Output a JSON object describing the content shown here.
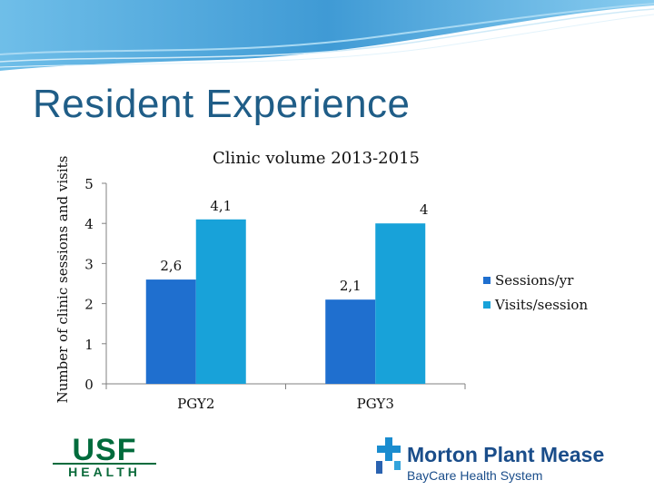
{
  "slide": {
    "title": "Resident Experience"
  },
  "chart_data": {
    "type": "bar",
    "title": "Clinic volume 2013-2015",
    "xlabel": "",
    "ylabel": "Number of clinic sessions and visits",
    "ylim": [
      0,
      5
    ],
    "yticks": [
      "0",
      "1",
      "2",
      "3",
      "4",
      "5"
    ],
    "categories": [
      "PGY2",
      "PGY3"
    ],
    "series": [
      {
        "name": "Sessions/yr",
        "values": [
          2.6,
          2.1
        ],
        "labels": [
          "2,6",
          "2,1"
        ],
        "color": "#1f6fcf"
      },
      {
        "name": "Visits/session",
        "values": [
          4.1,
          4.0
        ],
        "labels": [
          "4,1",
          "4"
        ],
        "color": "#18a2d9"
      }
    ],
    "legend": "right",
    "grid": false
  },
  "logos": {
    "usf_mark": "USF",
    "usf_health": "HEALTH",
    "mpm_name": "Morton Plant Mease",
    "mpm_sub": "BayCare Health System"
  },
  "colors": {
    "title": "#1f5d87",
    "wave": "#3b9fd8",
    "usf_green": "#006b3c",
    "mpm_blue": "#1a4d8a"
  }
}
